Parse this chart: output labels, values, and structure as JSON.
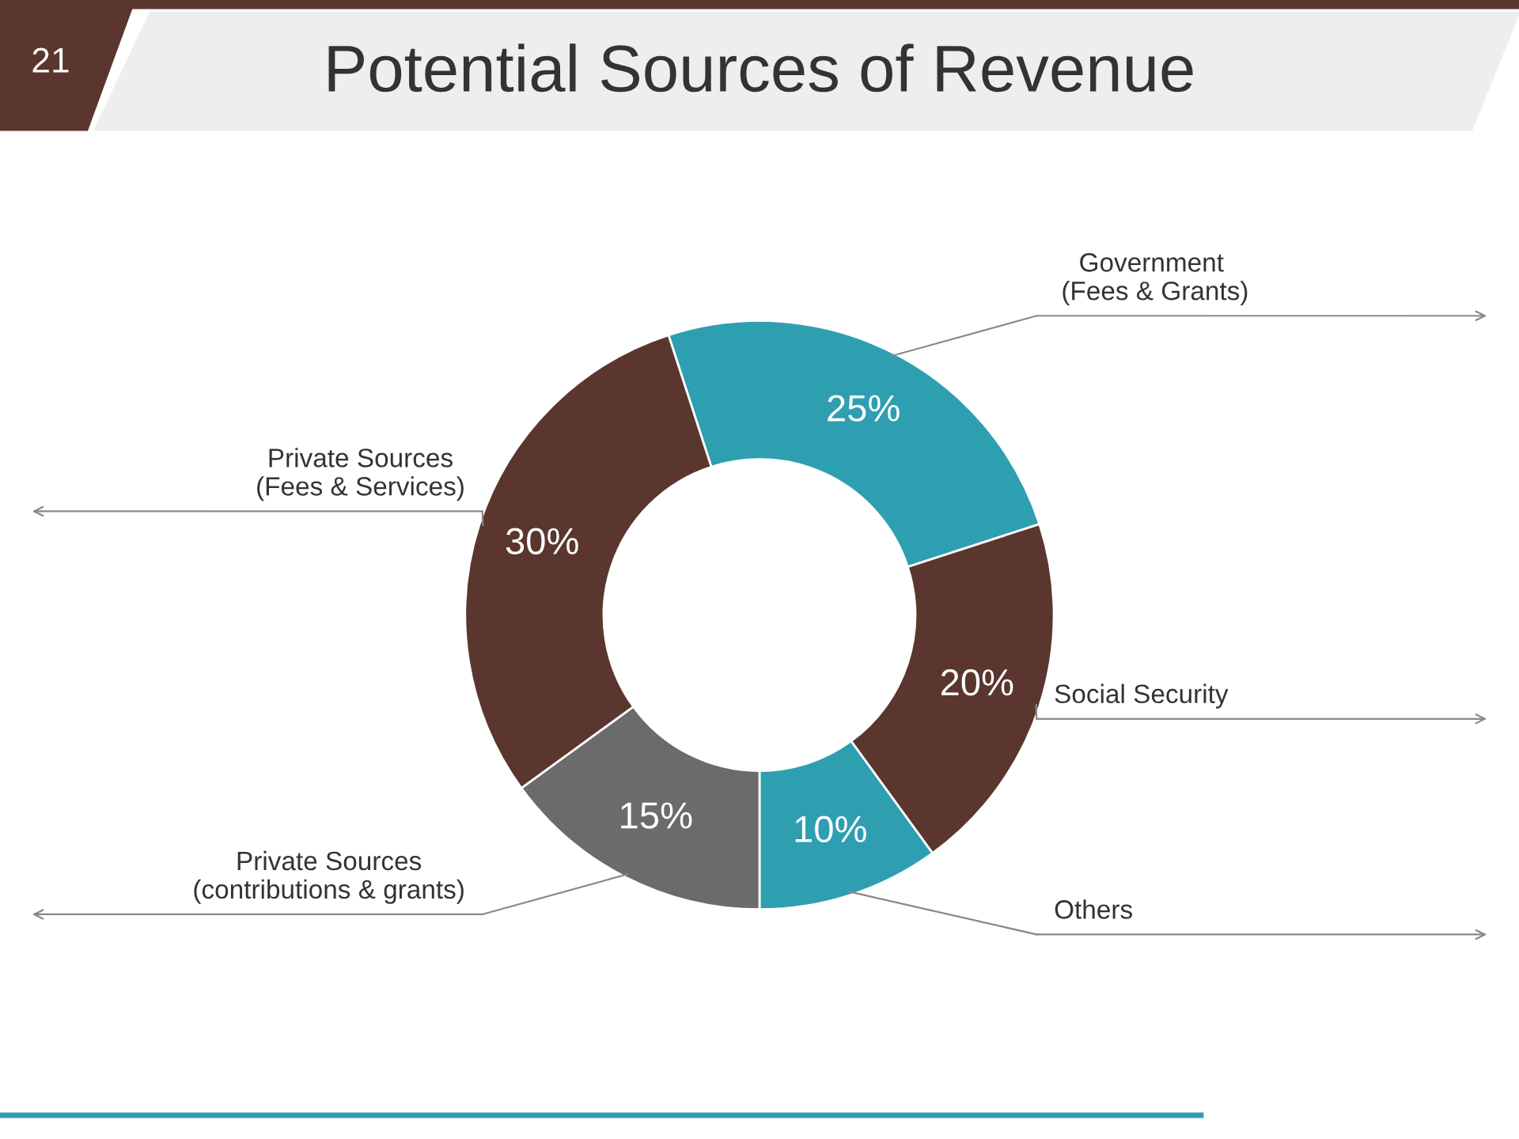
{
  "chart_data": {
    "type": "donut",
    "title": "Potential Sources of Revenue",
    "categories": [
      "Government\n (Fees & Grants)",
      "Social Security",
      "Others",
      "Private Sources\n(contributions & grants)",
      "Private Sources\n(Fees & Services)"
    ],
    "values": [
      25,
      20,
      10,
      15,
      30
    ],
    "colors": [
      "#2e9fb1",
      "#5a362e",
      "#2e9fb1",
      "#6b6b6b",
      "#5a362e"
    ],
    "value_labels": [
      "25%",
      "20%",
      "10%",
      "15%",
      "30%"
    ],
    "annotations": [
      "21"
    ],
    "legend": false
  }
}
